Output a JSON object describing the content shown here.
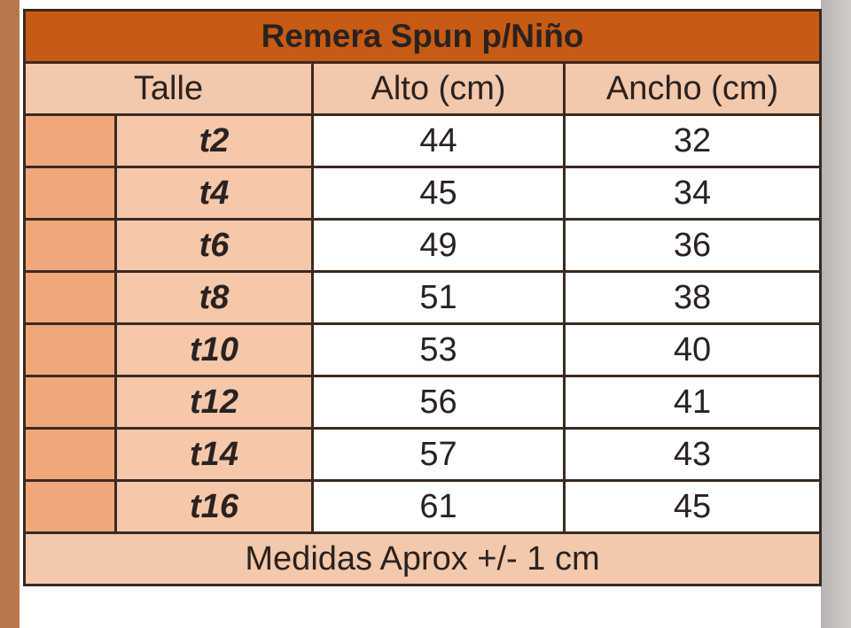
{
  "title": "Remera Spun p/Niño",
  "headers": {
    "size": "Talle",
    "height": "Alto (cm)",
    "width": "Ancho (cm)"
  },
  "rows": [
    {
      "size": "t2",
      "height": "44",
      "width": "32"
    },
    {
      "size": "t4",
      "height": "45",
      "width": "34"
    },
    {
      "size": "t6",
      "height": "49",
      "width": "36"
    },
    {
      "size": "t8",
      "height": "51",
      "width": "38"
    },
    {
      "size": "t10",
      "height": "53",
      "width": "40"
    },
    {
      "size": "t12",
      "height": "56",
      "width": "41"
    },
    {
      "size": "t14",
      "height": "57",
      "width": "43"
    },
    {
      "size": "t16",
      "height": "61",
      "width": "45"
    }
  ],
  "footer": "Medidas Aprox +/- 1 cm",
  "colors": {
    "title_bg": "#c85b14",
    "header_bg": "#f4c8aa",
    "side_bg": "#f0a87a"
  }
}
